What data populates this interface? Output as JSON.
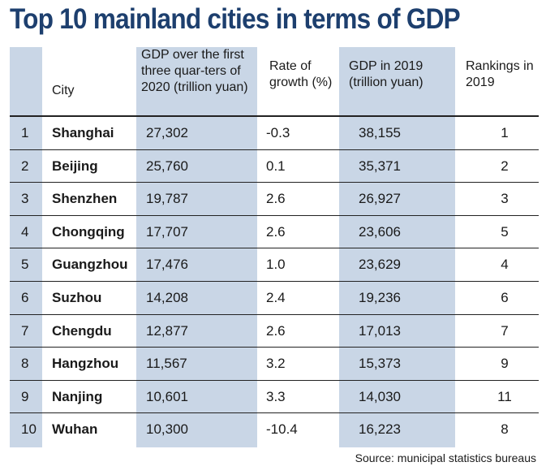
{
  "title": "Top 10 mainland cities in terms of GDP",
  "source": "Source: municipal statistics bureaus",
  "columns": {
    "city": "City",
    "gdp_2020": "GDP over the first three quar-ters of 2020 (trillion yuan)",
    "growth": "Rate of growth (%)",
    "gdp_2019": "GDP in 2019 (trillion yuan)",
    "ranking_2019": "Rankings in 2019"
  },
  "colors": {
    "title": "#1d3f6e",
    "band": "#c9d6e6"
  },
  "chart_data": {
    "type": "table",
    "title": "Top 10 mainland cities in terms of GDP",
    "headers": [
      "",
      "City",
      "GDP over the first three quar-ters of 2020 (trillion yuan)",
      "Rate of growth (%)",
      "GDP in 2019 (trillion yuan)",
      "Rankings in 2019"
    ],
    "rows": [
      {
        "rank": "1",
        "city": "Shanghai",
        "gdp_2020": "27,302",
        "growth": "-0.3",
        "gdp_2019": "38,155",
        "ranking_2019": "1"
      },
      {
        "rank": "2",
        "city": "Beijing",
        "gdp_2020": "25,760",
        "growth": "0.1",
        "gdp_2019": "35,371",
        "ranking_2019": "2"
      },
      {
        "rank": "3",
        "city": "Shenzhen",
        "gdp_2020": "19,787",
        "growth": "2.6",
        "gdp_2019": "26,927",
        "ranking_2019": "3"
      },
      {
        "rank": "4",
        "city": "Chongqing",
        "gdp_2020": "17,707",
        "growth": "2.6",
        "gdp_2019": "23,606",
        "ranking_2019": "5"
      },
      {
        "rank": "5",
        "city": "Guangzhou",
        "gdp_2020": "17,476",
        "growth": "1.0",
        "gdp_2019": "23,629",
        "ranking_2019": "4"
      },
      {
        "rank": "6",
        "city": "Suzhou",
        "gdp_2020": "14,208",
        "growth": "2.4",
        "gdp_2019": "19,236",
        "ranking_2019": "6"
      },
      {
        "rank": "7",
        "city": "Chengdu",
        "gdp_2020": "12,877",
        "growth": "2.6",
        "gdp_2019": "17,013",
        "ranking_2019": "7"
      },
      {
        "rank": "8",
        "city": "Hangzhou",
        "gdp_2020": "11,567",
        "growth": "3.2",
        "gdp_2019": "15,373",
        "ranking_2019": "9"
      },
      {
        "rank": "9",
        "city": "Nanjing",
        "gdp_2020": "10,601",
        "growth": "3.3",
        "gdp_2019": "14,030",
        "ranking_2019": "11"
      },
      {
        "rank": "10",
        "city": "Wuhan",
        "gdp_2020": "10,300",
        "growth": "-10.4",
        "gdp_2019": "16,223",
        "ranking_2019": "8"
      }
    ]
  }
}
